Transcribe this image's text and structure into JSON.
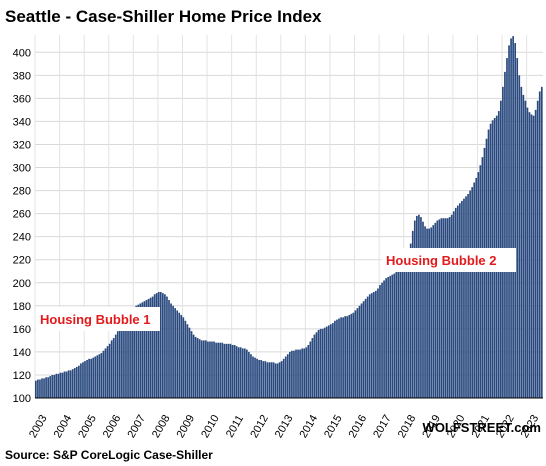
{
  "chart_data": {
    "type": "bar",
    "title": "Seattle - Case-Shiller Home Price Index",
    "xlabel": "",
    "ylabel": "",
    "ylim": [
      100,
      415
    ],
    "yticks": [
      100,
      120,
      140,
      160,
      180,
      200,
      220,
      240,
      260,
      280,
      300,
      320,
      340,
      360,
      380,
      400
    ],
    "xtick_labels": [
      "2003",
      "2004",
      "2005",
      "2006",
      "2007",
      "2008",
      "2009",
      "2010",
      "2011",
      "2012",
      "2013",
      "2014",
      "2015",
      "2016",
      "2017",
      "2018",
      "2019",
      "2020",
      "2021",
      "2022",
      "2023"
    ],
    "grid": true,
    "frequency": "monthly",
    "start": "2003-01",
    "end": "2023-08",
    "values": [
      115,
      116,
      116,
      117,
      117,
      118,
      118,
      119,
      120,
      120,
      121,
      121,
      122,
      122,
      123,
      123,
      124,
      124,
      125,
      126,
      127,
      128,
      130,
      131,
      132,
      133,
      134,
      134,
      135,
      136,
      137,
      138,
      139,
      141,
      143,
      145,
      147,
      150,
      152,
      155,
      158,
      161,
      164,
      167,
      170,
      172,
      174,
      176,
      178,
      180,
      181,
      182,
      183,
      184,
      185,
      186,
      187,
      188,
      190,
      191,
      192,
      192,
      191,
      190,
      188,
      185,
      182,
      180,
      178,
      176,
      174,
      172,
      170,
      167,
      164,
      161,
      158,
      155,
      153,
      152,
      151,
      150,
      150,
      150,
      149,
      149,
      149,
      149,
      148,
      148,
      148,
      148,
      147,
      147,
      147,
      147,
      146,
      146,
      145,
      144,
      144,
      143,
      143,
      142,
      140,
      138,
      136,
      135,
      134,
      133,
      133,
      132,
      132,
      131,
      131,
      131,
      131,
      130,
      130,
      131,
      132,
      134,
      136,
      138,
      140,
      141,
      141,
      142,
      142,
      142,
      143,
      143,
      144,
      146,
      149,
      152,
      155,
      157,
      159,
      160,
      160,
      161,
      162,
      163,
      164,
      165,
      167,
      168,
      169,
      170,
      170,
      171,
      171,
      172,
      173,
      174,
      176,
      178,
      180,
      182,
      184,
      186,
      188,
      190,
      191,
      192,
      193,
      195,
      198,
      200,
      202,
      204,
      205,
      206,
      207,
      208,
      210,
      212,
      213,
      214,
      216,
      220,
      226,
      234,
      245,
      254,
      258,
      259,
      257,
      253,
      249,
      247,
      247,
      248,
      250,
      252,
      254,
      255,
      256,
      256,
      256,
      256,
      257,
      259,
      262,
      265,
      267,
      269,
      271,
      273,
      275,
      277,
      280,
      283,
      287,
      291,
      296,
      302,
      309,
      317,
      325,
      333,
      338,
      341,
      343,
      345,
      349,
      358,
      370,
      383,
      395,
      406,
      412,
      414,
      408,
      395,
      380,
      370,
      363,
      358,
      352,
      348,
      346,
      345,
      350,
      358,
      366,
      370
    ],
    "bar_color": "#2a4a7f",
    "annotations": [
      {
        "text": "Housing Bubble 1",
        "color": "#e31a1c"
      },
      {
        "text": "Housing Bubble 2",
        "color": "#e31a1c"
      }
    ],
    "source": "Source: S&P CoreLogic Case-Shiller",
    "brand": "WOLFSTREET.com"
  }
}
